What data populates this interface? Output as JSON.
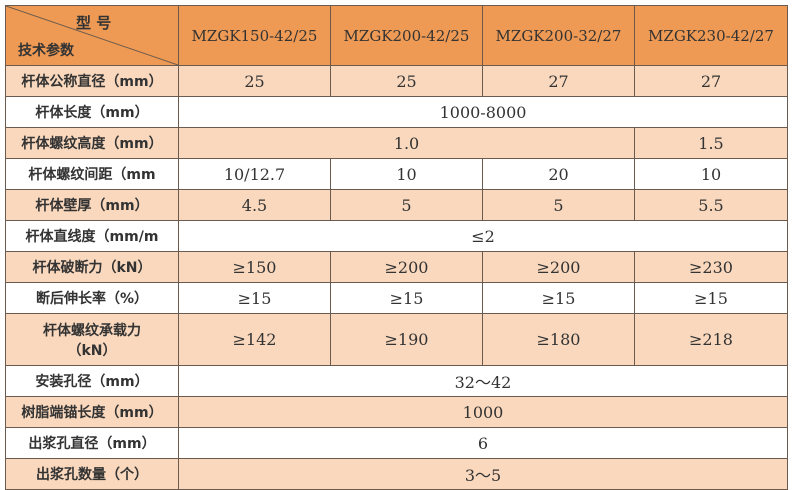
{
  "header": {
    "corner_top": "型 号",
    "corner_bottom": "技术参数",
    "models": [
      "MZGK150-42/25",
      "MZGK200-42/25",
      "MZGK200-32/27",
      "MZGK230-42/27"
    ]
  },
  "colors": {
    "header": "#ee9a54",
    "shaded_row": "#f9d8bd"
  },
  "rows": [
    {
      "label": "杆体公称直径（mm）",
      "values": [
        "25",
        "25",
        "27",
        "27"
      ]
    },
    {
      "label": "杆体长度（mm）",
      "values": [
        "1000-8000"
      ]
    },
    {
      "label": "杆体螺纹高度（mm）",
      "values": [
        "1.0",
        "1.5"
      ]
    },
    {
      "label": "杆体螺纹间距（mm",
      "values": [
        "10/12.7",
        "10",
        "20",
        "10"
      ]
    },
    {
      "label": "杆体壁厚（mm）",
      "values": [
        "4.5",
        "5",
        "5",
        "5.5"
      ]
    },
    {
      "label": "杆体直线度（mm/m",
      "values": [
        "≤2"
      ]
    },
    {
      "label": "杆体破断力（kN）",
      "values": [
        "≥150",
        "≥200",
        "≥200",
        "≥230"
      ]
    },
    {
      "label": "断后伸长率（%）",
      "values": [
        "≥15",
        "≥15",
        "≥15",
        "≥15"
      ]
    },
    {
      "label": "杆体螺纹承载力",
      "label2": "（kN）",
      "values": [
        "≥142",
        "≥190",
        "≥180",
        "≥218"
      ]
    },
    {
      "label": "安装孔径（mm）",
      "values": [
        "32～42"
      ]
    },
    {
      "label": "树脂端锚长度（mm）",
      "values": [
        "1000"
      ]
    },
    {
      "label": "出浆孔直径（mm）",
      "values": [
        "6"
      ]
    },
    {
      "label": "出浆孔数量（个）",
      "values": [
        "3～5"
      ]
    }
  ]
}
